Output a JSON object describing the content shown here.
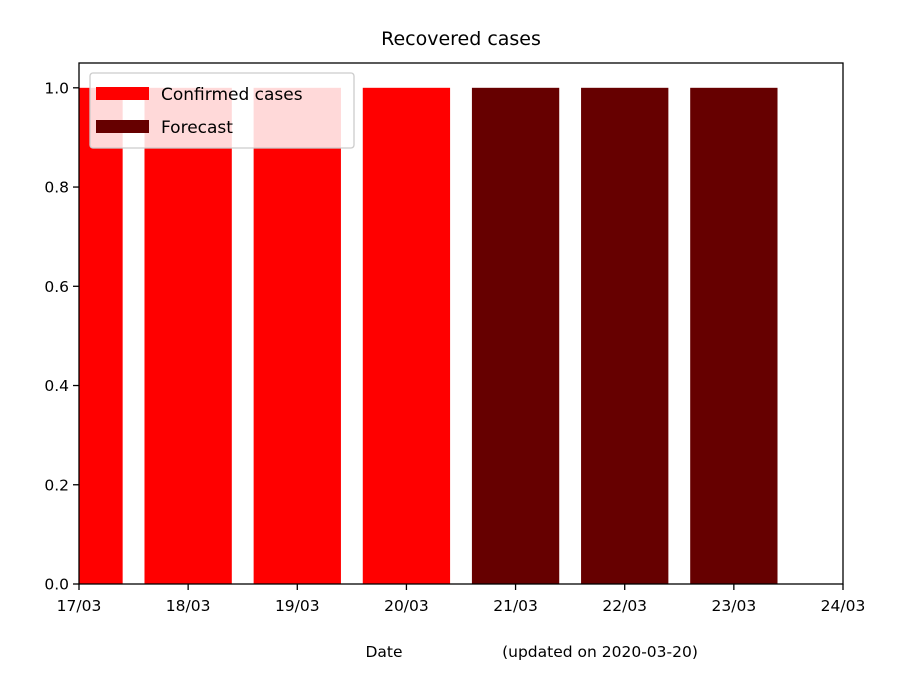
{
  "chart_data": {
    "type": "bar",
    "title": "Recovered cases",
    "xlabel": "Date",
    "xlabel_note": "(updated on 2020-03-20)",
    "ylabel": "",
    "ylim": [
      0,
      1.05
    ],
    "yticks": [
      "0.0",
      "0.2",
      "0.4",
      "0.6",
      "0.8",
      "1.0"
    ],
    "ytick_values": [
      0,
      0.2,
      0.4,
      0.6,
      0.8,
      1.0
    ],
    "xlim": [
      0,
      7
    ],
    "xticks": [
      "17/03",
      "18/03",
      "19/03",
      "20/03",
      "21/03",
      "22/03",
      "23/03",
      "24/03"
    ],
    "grid": false,
    "legend_position": "top-left",
    "series": [
      {
        "name": "Confirmed cases",
        "color": "#ff0000",
        "categories": [
          "17/03",
          "18/03",
          "19/03",
          "20/03"
        ],
        "values": [
          1,
          1,
          1,
          1
        ]
      },
      {
        "name": "Forecast",
        "color": "#660000",
        "categories": [
          "21/03",
          "22/03",
          "23/03"
        ],
        "values": [
          1,
          1,
          1
        ]
      }
    ]
  }
}
